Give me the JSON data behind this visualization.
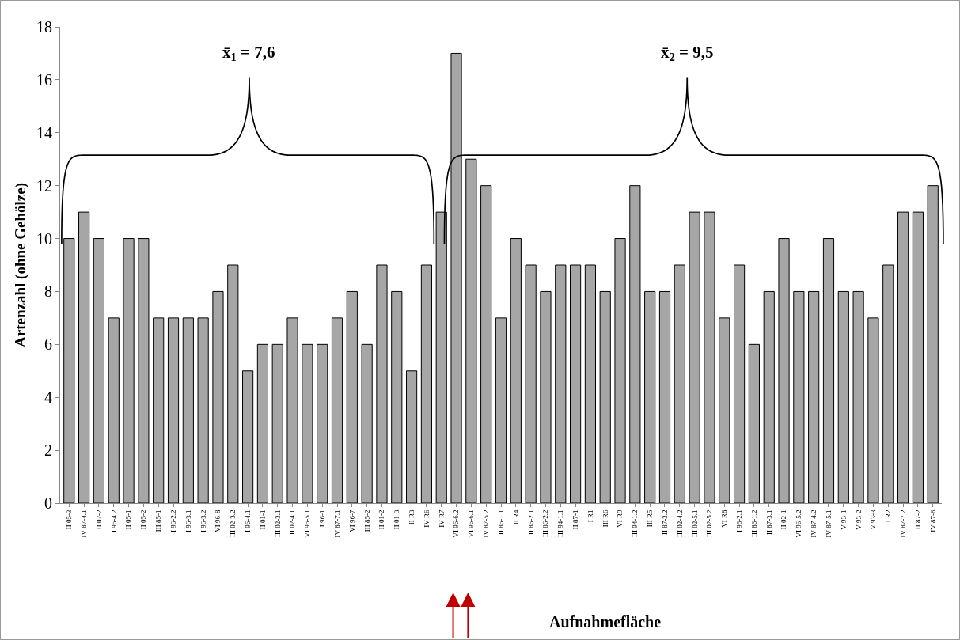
{
  "chart_data": {
    "type": "bar",
    "ylabel": "Artenzahl (ohne Gehölze)",
    "xlabel": "Aufnahmefläche",
    "annotations": [
      "x̄$_{1}$ = 7,6",
      "x̄$_{2}$ = 9,5"
    ],
    "categories": [
      "II 05-3",
      "IV 87-4.1",
      "II 02-2",
      "I 96-4.2",
      "II 05-1",
      "II 05-2",
      "III 85-1",
      "I 96-2.2",
      "I 96-3.1",
      "I 96-3.2",
      "VI 96-8",
      "III 02-3.2",
      "I 96-4.1",
      "II 01-1",
      "III 02-3.1",
      "III 02-4.1",
      "VI 96-5.1",
      "I 96-1",
      "IV 87-7.1",
      "VI 96-7",
      "III 85-2",
      "II 01-2",
      "II 01-3",
      "II R3",
      "IV R6",
      "IV R7",
      "VI 96-6.2",
      "VI 96-6.1",
      "IV 87-5.2",
      "III 86-1.1",
      "II R4",
      "III 86-2.1",
      "III 86-2.2",
      "III 94-1.1",
      "II 87-1",
      "I R1",
      "III R6",
      "VI R9",
      "III 94-1.2",
      "III R5",
      "II 87-3.2",
      "III 02-4.2",
      "III 02-5.1",
      "III 02-5.2",
      "VI R8",
      "I 96-2.1",
      "III 86-1.2",
      "II 87-3.1",
      "II 02-1",
      "VI 96-5.2",
      "IV 87-4.2",
      "IV 87-5.1",
      "V 93-1",
      "V 93-2",
      "V 93-3",
      "I R2",
      "IV 87-7.2",
      "II 87-2",
      "IV 87-6"
    ],
    "values": [
      10,
      11,
      10,
      7,
      10,
      10,
      7,
      7,
      7,
      7,
      8,
      9,
      5,
      6,
      6,
      7,
      6,
      6,
      7,
      8,
      6,
      9,
      8,
      5,
      9,
      11,
      17,
      13,
      12,
      7,
      10,
      9,
      8,
      9,
      9,
      9,
      8,
      10,
      12,
      8,
      8,
      9,
      11,
      11,
      7,
      9,
      6,
      8,
      10,
      8,
      8,
      10,
      8,
      8,
      7,
      9,
      11,
      11,
      12
    ],
    "color": "#a6a6a6",
    "ylim": [
      0,
      18
    ],
    "yticks": [
      0,
      2,
      4,
      6,
      8,
      10,
      12,
      14,
      16,
      18
    ],
    "grid": false
  }
}
